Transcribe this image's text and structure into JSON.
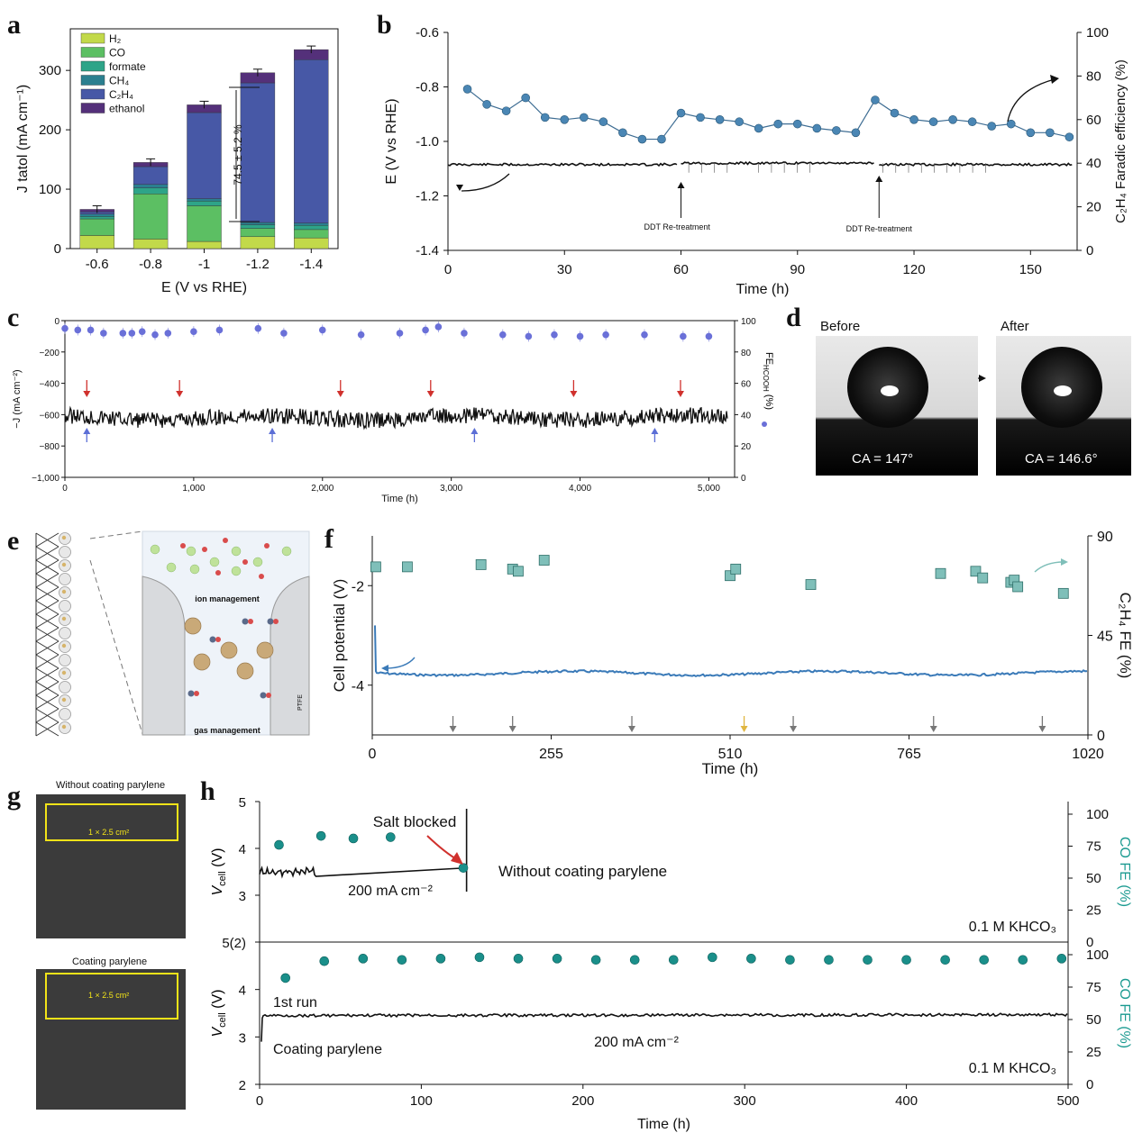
{
  "figure": {
    "labels": [
      "a",
      "b",
      "c",
      "d",
      "e",
      "f",
      "g",
      "h"
    ]
  },
  "chart_data": [
    {
      "panel": "a",
      "type": "bar",
      "stacked": true,
      "xlabel": "E (V vs RHE)",
      "ylabel": "J tatol (mA cm⁻¹)",
      "categories": [
        "-0.6",
        "-0.8",
        "-1",
        "-1.2",
        "-1.4"
      ],
      "ylim": [
        0,
        370
      ],
      "yticks": [
        0,
        100,
        200,
        300
      ],
      "legend_position": "top-left",
      "series": [
        {
          "name": "H₂",
          "color": "#c2d94a",
          "values": [
            22,
            16,
            12,
            20,
            18
          ]
        },
        {
          "name": "CO",
          "color": "#5cbf63",
          "values": [
            28,
            76,
            60,
            14,
            14
          ]
        },
        {
          "name": "formate",
          "color": "#2ea488",
          "values": [
            4,
            10,
            8,
            6,
            7
          ]
        },
        {
          "name": "CH₄",
          "color": "#2b7f8f",
          "values": [
            4,
            6,
            4,
            4,
            4
          ]
        },
        {
          "name": "C₂H₄",
          "color": "#4758a6",
          "values": [
            4,
            30,
            145,
            235,
            275
          ]
        },
        {
          "name": "ethanol",
          "color": "#54307a",
          "values": [
            4,
            7,
            13,
            17,
            17
          ]
        }
      ],
      "annotation": "74.5 ± 5.2 %"
    },
    {
      "panel": "b",
      "type": "line",
      "xlabel": "Time (h)",
      "ylabel_left": "E (V vs RHE)",
      "ylabel_right": "C₂H₄ Faradic efficiency (%)",
      "xlim": [
        0,
        162
      ],
      "xticks": [
        0,
        30,
        60,
        90,
        120,
        150
      ],
      "ylim_left": [
        -1.4,
        -0.6
      ],
      "yticks_left": [
        "-0.6",
        "-0.8",
        "-1.0",
        "-1.2",
        "-1.4"
      ],
      "ylim_right": [
        0,
        100
      ],
      "yticks_right": [
        0,
        20,
        40,
        60,
        80,
        100
      ],
      "fe_x": [
        5,
        10,
        15,
        20,
        25,
        30,
        35,
        40,
        45,
        50,
        55,
        60,
        65,
        70,
        75,
        80,
        85,
        90,
        95,
        100,
        105,
        110,
        115,
        120,
        125,
        130,
        135,
        140,
        145,
        150,
        155,
        160
      ],
      "fe_y": [
        74,
        67,
        64,
        70,
        61,
        60,
        61,
        59,
        54,
        51,
        51,
        63,
        61,
        60,
        59,
        56,
        58,
        58,
        56,
        55,
        54,
        69,
        63,
        60,
        59,
        60,
        59,
        57,
        58,
        54,
        54,
        52
      ],
      "potential_level": [
        -1.08,
        -1.07,
        -1.1,
        -1.07,
        -1.08
      ],
      "annotations": [
        "DDT Re-treatment",
        "DDT Re-treatment"
      ]
    },
    {
      "panel": "c",
      "type": "line",
      "xlabel": "Time (h)",
      "ylabel_left": "−J (mA cm⁻²)",
      "ylabel_right": "FE",
      "ylabel_right_sub": "HCOOH",
      "ylabel_right_unit": "(%)",
      "xlim": [
        0,
        5200
      ],
      "xticks": [
        "0",
        "1,000",
        "2,000",
        "3,000",
        "4,000",
        "5,000"
      ],
      "ylim_left": [
        -1000,
        0
      ],
      "yticks_left": [
        "0",
        "−200",
        "−400",
        "−600",
        "−800",
        "−1,000"
      ],
      "ylim_right": [
        0,
        100
      ],
      "yticks_right": [
        0,
        20,
        40,
        60,
        80,
        100
      ],
      "fe_x": [
        0,
        100,
        200,
        300,
        450,
        520,
        600,
        700,
        800,
        1000,
        1200,
        1500,
        1700,
        2000,
        2300,
        2600,
        2800,
        2900,
        3100,
        3400,
        3600,
        3800,
        4000,
        4200,
        4500,
        4800,
        5000
      ],
      "fe_y": [
        95,
        94,
        94,
        92,
        92,
        92,
        93,
        91,
        92,
        93,
        94,
        95,
        92,
        94,
        91,
        92,
        94,
        96,
        92,
        91,
        90,
        91,
        90,
        91,
        91,
        90,
        90
      ]
    },
    {
      "panel": "f",
      "type": "scatter",
      "xlabel": "Time (h)",
      "ylabel_left": "Cell potential (V)",
      "ylabel_right": "C₂H₄ FE (%)",
      "xlim": [
        0,
        1020
      ],
      "xticks": [
        0,
        255,
        510,
        765,
        1020
      ],
      "ylim_left": [
        -5,
        -1
      ],
      "yticks_left": [
        -2,
        -4
      ],
      "ylim_right": [
        0,
        90
      ],
      "yticks_right": [
        0,
        45,
        90
      ],
      "fe_x": [
        5,
        50,
        155,
        200,
        208,
        245,
        510,
        518,
        625,
        810,
        860,
        870,
        910,
        915,
        920,
        985
      ],
      "fe_y": [
        76,
        76,
        77,
        75,
        74,
        79,
        72,
        75,
        68,
        73,
        74,
        71,
        69,
        70,
        67,
        64
      ],
      "potential_level": -3.75
    },
    {
      "panel": "h",
      "type": "line",
      "xlabel": "Time (h)",
      "xlim": [
        0,
        500
      ],
      "xticks": [
        0,
        100,
        200,
        300,
        400,
        500
      ],
      "top": {
        "ylabel_left": "V",
        "ylabel_left_sub": "cell",
        "ylabel_left_unit": " (V)",
        "ylim_left": [
          2,
          5
        ],
        "yticks_left": [
          3,
          4,
          5
        ],
        "ylabel_right": "CO FE (%)",
        "yticks_right": [
          25,
          50,
          75,
          100
        ],
        "fe_x": [
          12,
          38,
          58,
          81,
          126
        ],
        "fe_y": [
          76,
          83,
          81,
          82,
          58
        ],
        "labels": [
          "Salt blocked",
          "Without coating parylene",
          "200 mA cm⁻²",
          "0.1 M KHCO₃"
        ]
      },
      "bottom": {
        "ylabel_left": "V",
        "ylabel_left_sub": "cell",
        "ylabel_left_unit": " (V)",
        "yticks_left": [
          2,
          3,
          4,
          "5(2)"
        ],
        "ylabel_right": "CO FE (%)",
        "yticks_right": [
          0,
          25,
          50,
          75,
          100
        ],
        "fe_x": [
          16,
          40,
          64,
          88,
          112,
          136,
          160,
          184,
          208,
          232,
          256,
          280,
          304,
          328,
          352,
          376,
          400,
          424,
          448,
          472,
          496
        ],
        "fe_y": [
          82,
          95,
          97,
          96,
          97,
          98,
          97,
          97,
          96,
          96,
          96,
          98,
          97,
          96,
          96,
          96,
          96,
          96,
          96,
          96,
          97
        ],
        "labels": [
          "1st run",
          "Coating parylene",
          "200 mA cm⁻²",
          "0.1 M KHCO₃"
        ]
      }
    }
  ],
  "panel_d": {
    "before": "Before",
    "after": "After",
    "ca_before": "CA = 147°",
    "ca_after": "CA = 146.6°"
  },
  "panel_e": {
    "ion_management": "ion management",
    "gas_management": "gas management",
    "ptfe": "PTFE"
  },
  "panel_g": {
    "without": "Without coating parylene",
    "with": "Coating parylene",
    "area": "1 × 2.5 cm²"
  },
  "colors": {
    "fe_marker_b": "#4a86b4",
    "fe_marker_c": "#6a70d8",
    "fe_marker_f": "#7fbfb9",
    "fe_marker_h": "#1a8f8a",
    "potential_f": "#3a7ab8",
    "arrow_red": "#d0312d",
    "arrow_blue": "#5c6fd6",
    "accent_teal": "#1a9a90"
  }
}
